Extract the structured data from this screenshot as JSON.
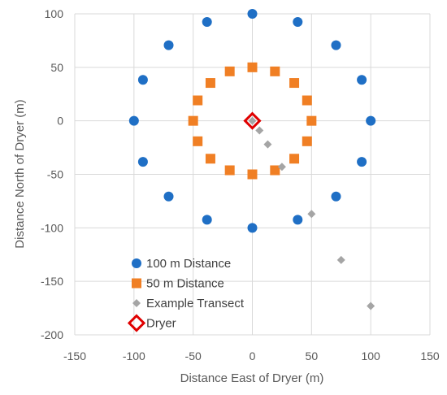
{
  "chart_data": {
    "type": "scatter",
    "xlabel": "Distance East of Dryer (m)",
    "ylabel": "Distance North of Dryer (m)",
    "xlim": [
      -150,
      150
    ],
    "ylim": [
      -200,
      100
    ],
    "xticks": [
      -150,
      -100,
      -50,
      0,
      50,
      100,
      150
    ],
    "yticks": [
      -200,
      -150,
      -100,
      -50,
      0,
      50,
      100
    ],
    "grid": true,
    "legend_position": "bottom-left",
    "series": [
      {
        "name": "100 m Distance",
        "marker": "circle",
        "color": "#1f6fc5",
        "points": [
          [
            0,
            100
          ],
          [
            38.3,
            92.4
          ],
          [
            70.7,
            70.7
          ],
          [
            92.4,
            38.3
          ],
          [
            100,
            0
          ],
          [
            92.4,
            -38.3
          ],
          [
            70.7,
            -70.7
          ],
          [
            38.3,
            -92.4
          ],
          [
            0,
            -100
          ],
          [
            -38.3,
            -92.4
          ],
          [
            -70.7,
            -70.7
          ],
          [
            -92.4,
            -38.3
          ],
          [
            -100,
            0
          ],
          [
            -92.4,
            38.3
          ],
          [
            -70.7,
            70.7
          ],
          [
            -38.3,
            92.4
          ]
        ]
      },
      {
        "name": "50 m Distance",
        "marker": "square",
        "color": "#f07f24",
        "points": [
          [
            0,
            50
          ],
          [
            19.1,
            46.2
          ],
          [
            35.4,
            35.4
          ],
          [
            46.2,
            19.1
          ],
          [
            50,
            0
          ],
          [
            46.2,
            -19.1
          ],
          [
            35.4,
            -35.4
          ],
          [
            19.1,
            -46.2
          ],
          [
            0,
            -50
          ],
          [
            -19.1,
            -46.2
          ],
          [
            -35.4,
            -35.4
          ],
          [
            -46.2,
            -19.1
          ],
          [
            -50,
            0
          ],
          [
            -46.2,
            19.1
          ],
          [
            -35.4,
            35.4
          ],
          [
            -19.1,
            46.2
          ]
        ]
      },
      {
        "name": "Example Transect",
        "marker": "diamond",
        "color": "#a5a5a5",
        "points": [
          [
            0,
            0
          ],
          [
            6,
            -9
          ],
          [
            13,
            -22
          ],
          [
            25,
            -43
          ],
          [
            50,
            -87
          ],
          [
            75,
            -130
          ],
          [
            100,
            -173
          ]
        ]
      },
      {
        "name": "Dryer",
        "marker": "diamond-open",
        "color": "#e00000",
        "points": [
          [
            0,
            0
          ]
        ]
      }
    ]
  }
}
